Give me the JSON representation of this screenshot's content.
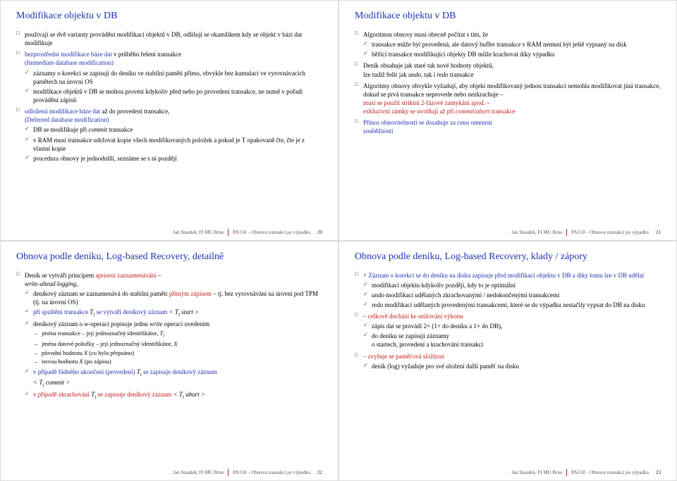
{
  "footer_author": "Jan Staudek, FI MU Brno",
  "footer_course": "PA150 – Obnova transakcí po výpadku",
  "slide20": {
    "title": "Modifikace objektu v DB",
    "i1": "používají se dvě varianty provádění modifikací objektů v DB, odlišují se okamžikem kdy se objekt v bázi dat modifikuje",
    "i2a": "bezprostřední modifikace báze dat",
    "i2b": " v průběhu řešení transakce",
    "i2c": "(Immediate database modification)",
    "s2_1": "záznamy o korekci se zapisují do deníku ve stabilní paměti přímo, obvykle bez kumulací ve vyrovnávacích pamětech na úrovni OS",
    "s2_2": "modifikace objektů v DB se mohou provést kdykoliv před nebo po provedení transakce, ne nutně v pořadí provádění zápisů",
    "i3a": "odložená modifikace báze dat",
    "i3b": " až do provedení transakce,",
    "i3c": "(Deferred database modification)",
    "s3_1a": "DB se modifikuje při ",
    "s3_1b": " transakce",
    "s3_2": "v RAM musí transakce udržovat kopie všech modifikovaných položek a pokud je T opakovaně čte, čte je z vlastní kopie",
    "s3_3": "procedura obnovy je jednodušší, seznáme se s ní později",
    "page": "20"
  },
  "slide21": {
    "title": "Modifikace objektu v DB",
    "i1": "Algoritmus obnovy musí obecně počítat s tím, že",
    "s1_1": "transakce může být provedená, ale datový buffer transakce v RAM nemusí být ještě vypsaný na disk",
    "s1_2": "běžící transakce modifikující objekty DB může krachovat díky výpadku",
    "i2a": "Deník obsahuje jak staré tak nové hodnoty objektů,",
    "i2b": "lze tudíž řešit jak ",
    "i2c": ", tak i ",
    "i2d": " transakce",
    "i3": "Algoritmy obnovy obvykle vyžadují, aby objekt modifikovaný jednou transakcí nemohla modifikovat jiná transakce, dokud se prvá transakce neprovede nebo nezkrachuje –",
    "i3r1": "musí se použít striktní 2-fázové zamykání apod. –",
    "i3r2a": "exkluzivní zámky se uvolňují až při ",
    "i3r2b": " transakce",
    "i4a": "Přínos obnovitelnosti se dosahuje za cenu omezení",
    "i4b": "souběžnosti",
    "page": "21"
  },
  "slide22": {
    "title": "Obnova podle deníku, Log-based Recovery, detailně",
    "i1a": "Deník se vytváří principem ",
    "i1b": "apriorní zaznamenávání",
    "i1c": " –",
    "i1d": "write-ahead logging,",
    "s1_1a": "deníkový záznam se zaznamenává do stabilní paměti ",
    "s1_1b": "přímým zápisem",
    "s1_1c": " – tj. bez vyrovnávání na úrovni pod TPM (tj. na úrovni OS)",
    "s1_2a": "při spuštění transakce ",
    "s1_2b": " se vytváří deníkový záznam ",
    "s1_3a": "deníkový záznam o ",
    "s1_3b": "-operaci",
    "s1_3c": " popisuje jednu ",
    "s1_3d": " operaci uvedením",
    "d1": "jména transakce – její jednoznačný identifikátor, ",
    "d2": "jména datové položky – její jednoznačný identifikátor, ",
    "d3a": "původní hodnotu ",
    "d3b": " (co bylo přepsáno)",
    "d4a": "novou hodnotu ",
    "d4b": " (po zápisu)",
    "s1_4a": "v případě řádného ukončení (provedení) ",
    "s1_4b": " se zapisuje deníkový záznam ",
    "s1_5a": "v případě zkrachování ",
    "s1_5b": " se zapisuje deníkový záznam ",
    "page": "22"
  },
  "slide23": {
    "title": "Obnova podle deníku, Log-based Recovery, klady / zápory",
    "i1": "+ Záznam o korekci se do deníku na disku zapisuje před modifikací objektu v DB a díky tomu lze v DB udělat",
    "s1_1": "modifikaci objektu kdykoliv později, kdy to je optimální",
    "s1_2a": "undo",
    "s1_2b": " modifikací udělaných zkrachovanými / nedokončenými transakcemi",
    "s1_3a": "redo",
    "s1_3b": " modifikací udělaných provedenými transakcemi, které se do výpadku nestačily vypsat do DB na disku",
    "i2": "– celkově dochází ke snižování výkonu",
    "s2_1a": "zápis dat se provádí ",
    "s2_1b": "  (",
    "s2_1c": " do deníku a ",
    "s2_1d": " do DB),",
    "s2_2": "do deníku se zapisují záznamy",
    "s2_2b": "o startech, provedení a krachování transakcí",
    "i3": "– zvyšuje se paměťová složitost",
    "s3_1": "deník (log) vyžaduje pro své uložení další paměť na disku",
    "page": "23"
  }
}
